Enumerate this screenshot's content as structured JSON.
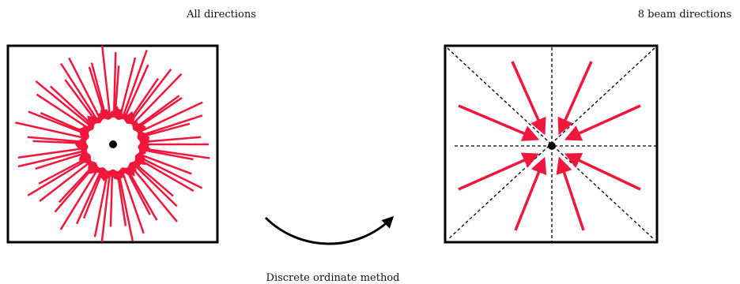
{
  "labels": {
    "left_title": "All directions",
    "right_title": "8 beam directions",
    "method": "Discrete ordinate method"
  },
  "colors": {
    "ray": "#f0163c",
    "ink": "#000000",
    "background": "#ffffff"
  },
  "left_panel": {
    "ray_count": 56
  },
  "right_panel": {
    "beam_count": 8
  }
}
